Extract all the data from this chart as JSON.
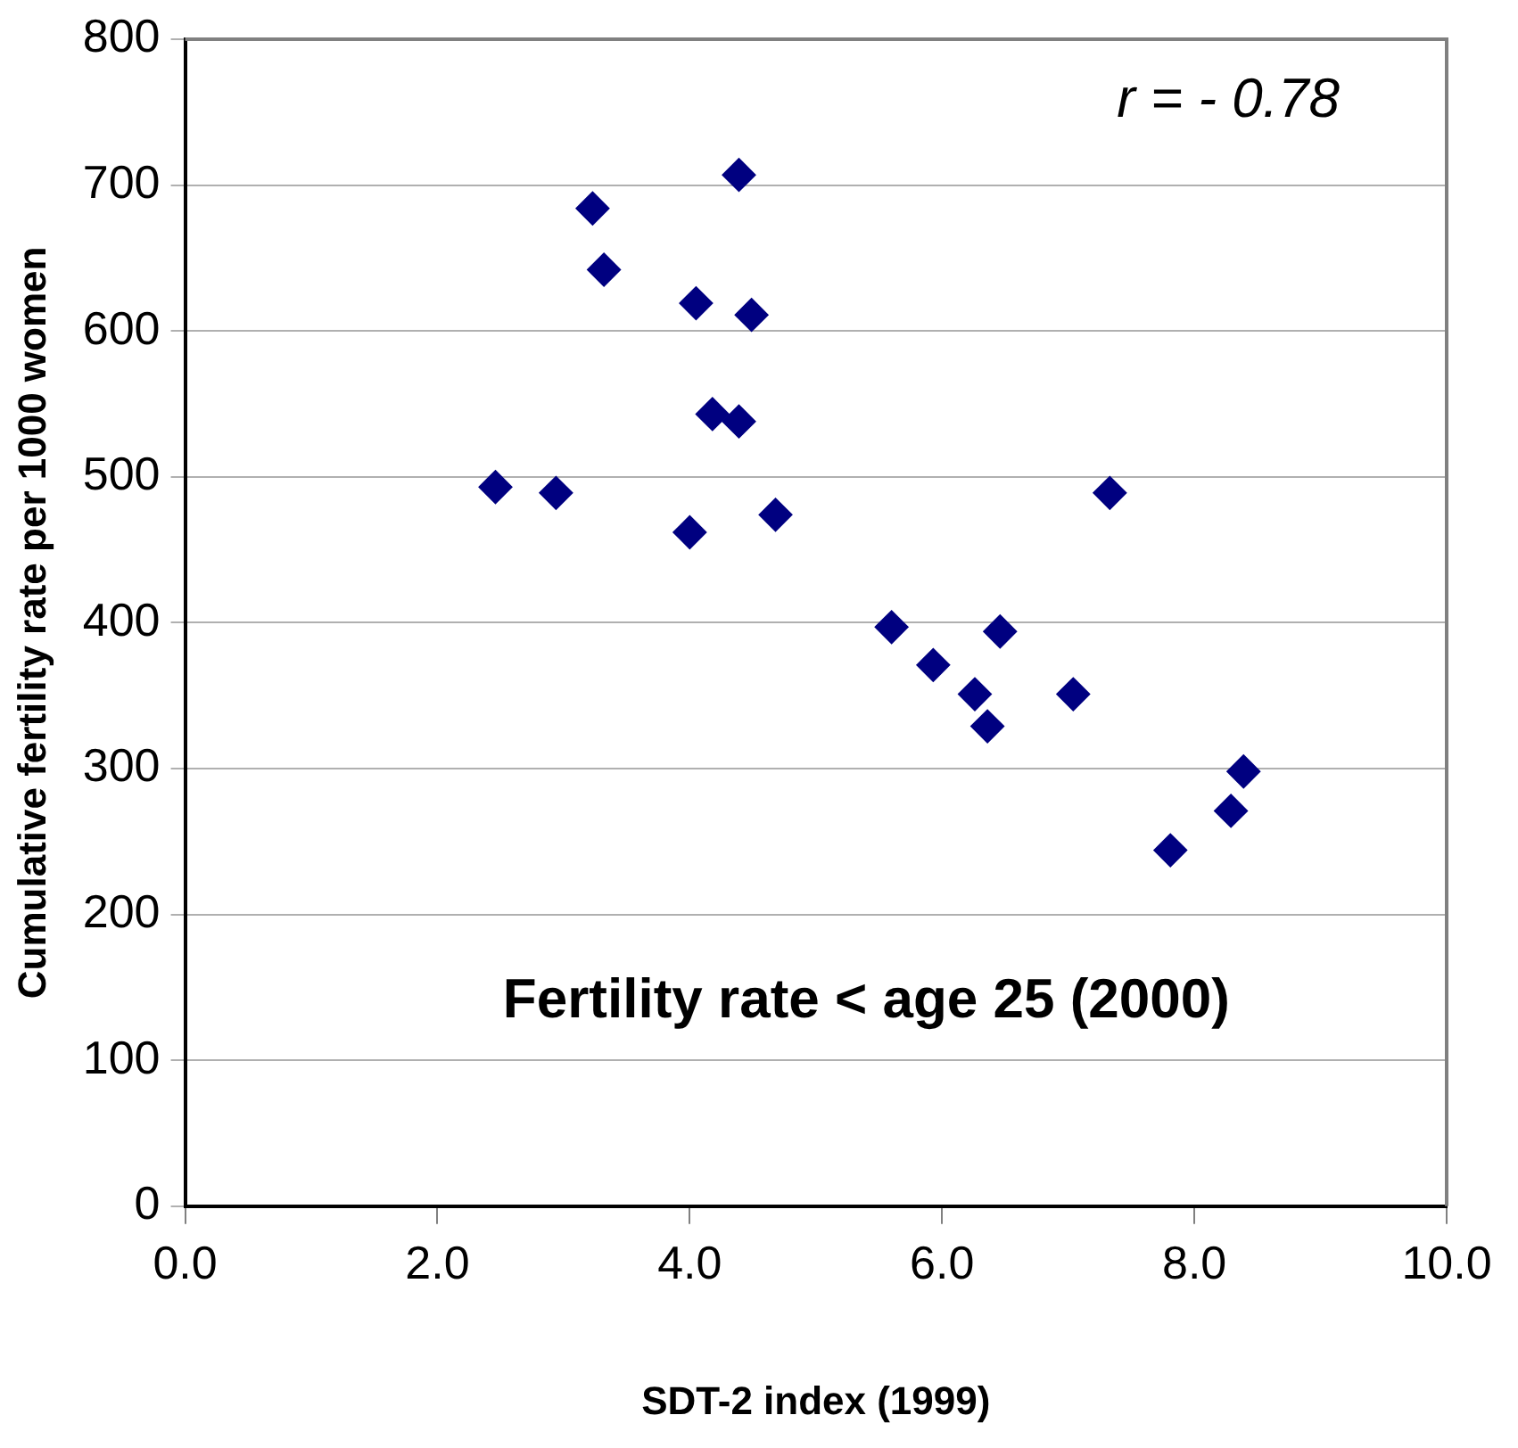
{
  "chart_data": {
    "type": "scatter",
    "title": "Fertility rate < age 25 (2000)",
    "xlabel": "SDT-2 index (1999)",
    "ylabel": "Cumulative fertility rate per 1000 women",
    "annotations": [
      "r = - 0.78"
    ],
    "series": [
      {
        "color": "#000080",
        "x": [
          2.46,
          2.94,
          3.23,
          3.32,
          4.0,
          4.05,
          4.18,
          4.39,
          4.39,
          4.49,
          4.68,
          5.6,
          5.93,
          6.26,
          6.36,
          6.46,
          7.04,
          7.33,
          7.81,
          8.29,
          8.39
        ],
        "values": [
          493,
          489,
          684,
          642,
          462,
          619,
          543,
          707,
          538,
          611,
          474,
          397,
          371,
          351,
          329,
          394,
          351,
          489,
          244,
          271,
          298
        ]
      }
    ],
    "xlim": [
      0,
      10
    ],
    "xticks": [
      {
        "value": 0,
        "label": "0.0"
      },
      {
        "value": 2,
        "label": "2.0"
      },
      {
        "value": 4,
        "label": "4.0"
      },
      {
        "value": 6,
        "label": "6.0"
      },
      {
        "value": 8,
        "label": "8.0"
      },
      {
        "value": 10,
        "label": "10.0"
      }
    ],
    "ylim": [
      0,
      800
    ],
    "yticks": [
      0,
      100,
      200,
      300,
      400,
      500,
      600,
      700,
      800
    ],
    "grid": "y",
    "legend": false,
    "marker": "diamond"
  }
}
